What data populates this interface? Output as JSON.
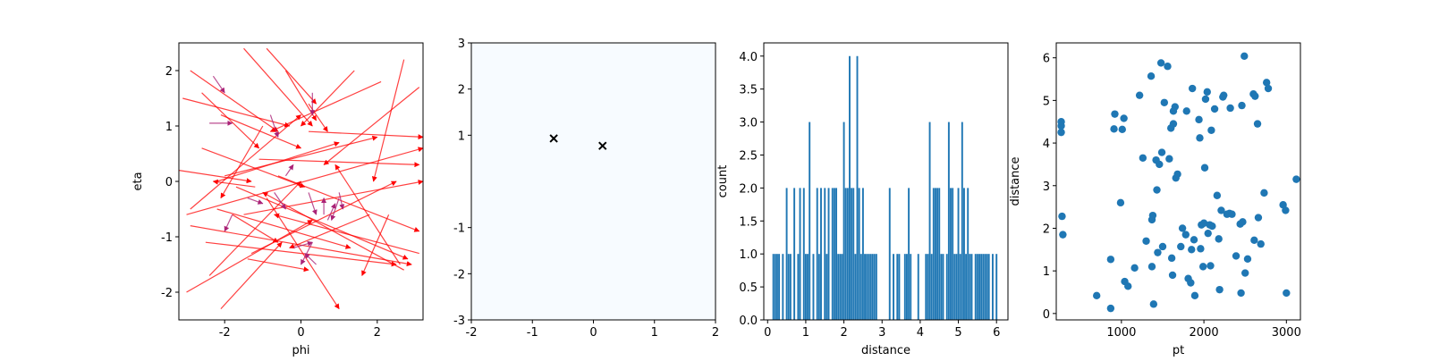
{
  "colors": {
    "arrow": "#ff0000",
    "arrow_short": "#aa2277",
    "bar": "#1f77b4",
    "point": "#1f77b4",
    "heat": "#f7fbff",
    "cross": "#000000"
  },
  "chart_data": [
    {
      "type": "quiver",
      "xlabel": "phi",
      "ylabel": "eta",
      "xlim": [
        -3.2,
        3.2
      ],
      "ylim": [
        -2.5,
        2.5
      ],
      "xticks": [
        -2,
        0,
        2
      ],
      "yticks": [
        -2,
        -1,
        0,
        1,
        2
      ],
      "long_arrows": [
        [
          -2.9,
          2.0,
          -0.6,
          0.9
        ],
        [
          -3.1,
          1.5,
          -0.3,
          1.0
        ],
        [
          -2.1,
          1.2,
          0.0,
          0.6
        ],
        [
          -1.5,
          2.4,
          0.3,
          1.0
        ],
        [
          -0.9,
          2.4,
          0.4,
          1.4
        ],
        [
          -0.4,
          2.0,
          0.4,
          1.1
        ],
        [
          0.2,
          1.4,
          0.7,
          0.9
        ],
        [
          1.4,
          2.0,
          0.0,
          1.0
        ],
        [
          2.1,
          1.8,
          -0.8,
          0.9
        ],
        [
          3.1,
          1.7,
          0.6,
          0.3
        ],
        [
          0.2,
          0.9,
          3.2,
          0.8
        ],
        [
          -2.2,
          0.0,
          1.0,
          0.7
        ],
        [
          -3.2,
          0.2,
          -1.3,
          0.0
        ],
        [
          -3.0,
          -0.6,
          3.2,
          0.6
        ],
        [
          2.7,
          2.2,
          1.9,
          0.0
        ],
        [
          -1.0,
          1.0,
          -2.1,
          -0.3
        ],
        [
          -2.6,
          1.6,
          -1.1,
          0.6
        ],
        [
          -1.5,
          -0.6,
          3.2,
          0.0
        ],
        [
          -2.9,
          -0.5,
          0.0,
          1.2
        ],
        [
          -3.0,
          -2.0,
          0.3,
          -0.7
        ],
        [
          -2.1,
          -2.3,
          -0.5,
          -1.1
        ],
        [
          -2.9,
          -0.8,
          2.9,
          -1.5
        ],
        [
          -2.2,
          -0.5,
          1.3,
          -1.2
        ],
        [
          2.7,
          -1.6,
          -1.0,
          -0.2
        ],
        [
          3.1,
          -1.3,
          -0.7,
          -0.6
        ],
        [
          -1.7,
          -0.1,
          2.8,
          -1.4
        ],
        [
          -1.8,
          -0.6,
          -0.6,
          -1.1
        ],
        [
          -0.9,
          -0.3,
          1.0,
          -2.3
        ],
        [
          -2.5,
          -1.1,
          2.5,
          -1.5
        ],
        [
          -1.4,
          -1.4,
          0.2,
          -1.6
        ],
        [
          2.3,
          -0.6,
          1.6,
          -1.7
        ],
        [
          1.8,
          -0.6,
          -0.3,
          -1.2
        ],
        [
          -2.6,
          0.6,
          0.1,
          -0.1
        ],
        [
          -1.1,
          0.4,
          3.1,
          0.3
        ],
        [
          -1.2,
          -0.1,
          -2.3,
          0.0
        ],
        [
          -2.0,
          0.1,
          2.0,
          0.8
        ],
        [
          -0.6,
          0.1,
          3.1,
          -0.9
        ],
        [
          -2.4,
          -1.7,
          0.0,
          0.0
        ],
        [
          2.6,
          -1.5,
          0.9,
          0.3
        ],
        [
          -1.3,
          -1.3,
          2.5,
          0.0
        ]
      ],
      "short_arrows": [
        [
          -2.3,
          1.9,
          -2.0,
          1.6
        ],
        [
          -2.4,
          1.05,
          -1.8,
          1.05
        ],
        [
          -0.8,
          1.2,
          -0.6,
          0.8
        ],
        [
          -1.4,
          -0.3,
          -1.0,
          -0.4
        ],
        [
          0.3,
          1.6,
          0.3,
          1.2
        ],
        [
          -0.4,
          0.1,
          -0.2,
          0.3
        ],
        [
          0.2,
          -0.2,
          0.4,
          -0.6
        ],
        [
          -1.8,
          -0.6,
          -2.0,
          -0.9
        ],
        [
          0.3,
          -1.1,
          0.0,
          -1.5
        ],
        [
          0.7,
          -0.7,
          0.9,
          -0.4
        ],
        [
          -0.7,
          -0.2,
          -0.4,
          -0.5
        ],
        [
          0.4,
          -1.5,
          0.1,
          -1.3
        ],
        [
          1.0,
          -0.3,
          0.8,
          -0.7
        ],
        [
          -0.2,
          -1.2,
          0.3,
          -1.1
        ],
        [
          0.6,
          -0.6,
          0.6,
          -0.3
        ],
        [
          1.0,
          -0.2,
          1.1,
          -0.5
        ]
      ]
    },
    {
      "type": "heatmap",
      "xlim": [
        -2,
        2
      ],
      "ylim": [
        -3,
        3
      ],
      "xticks": [
        -2,
        -1,
        0,
        1,
        2
      ],
      "yticks": [
        -3,
        -2,
        -1,
        1,
        2,
        3
      ],
      "xticklabels": [
        "-2",
        "-1",
        "0",
        "1",
        "2"
      ],
      "yticklabels": [
        "-3",
        "-2",
        "-1",
        "1",
        "2",
        "3"
      ],
      "markers": [
        [
          -0.65,
          0.93
        ],
        [
          0.15,
          0.77
        ]
      ]
    },
    {
      "type": "bar",
      "xlabel": "distance",
      "ylabel": "count",
      "xlim": [
        -0.1,
        6.3
      ],
      "ylim": [
        0,
        4.2
      ],
      "xticks": [
        0,
        1,
        2,
        3,
        4,
        5,
        6
      ],
      "yticks": [
        0.0,
        0.5,
        1.0,
        1.5,
        2.0,
        2.5,
        3.0,
        3.5,
        4.0
      ],
      "yticklabels": [
        "0.0",
        "0.5",
        "1.0",
        "1.5",
        "2.0",
        "2.5",
        "3.0",
        "3.5",
        "4.0"
      ],
      "bars": [
        [
          0.15,
          1
        ],
        [
          0.2,
          1
        ],
        [
          0.25,
          1
        ],
        [
          0.3,
          1
        ],
        [
          0.4,
          1
        ],
        [
          0.5,
          2
        ],
        [
          0.55,
          1
        ],
        [
          0.6,
          1
        ],
        [
          0.7,
          2
        ],
        [
          0.8,
          1
        ],
        [
          0.85,
          2
        ],
        [
          0.95,
          2
        ],
        [
          1.0,
          1
        ],
        [
          1.05,
          1
        ],
        [
          1.1,
          3
        ],
        [
          1.2,
          1
        ],
        [
          1.3,
          2
        ],
        [
          1.35,
          1
        ],
        [
          1.4,
          2
        ],
        [
          1.5,
          2
        ],
        [
          1.55,
          1
        ],
        [
          1.6,
          2
        ],
        [
          1.7,
          2
        ],
        [
          1.75,
          2
        ],
        [
          1.8,
          2
        ],
        [
          1.85,
          1
        ],
        [
          1.9,
          1
        ],
        [
          1.95,
          1
        ],
        [
          2.0,
          3
        ],
        [
          2.05,
          2
        ],
        [
          2.1,
          2
        ],
        [
          2.15,
          4
        ],
        [
          2.2,
          2
        ],
        [
          2.25,
          2
        ],
        [
          2.3,
          1
        ],
        [
          2.35,
          4
        ],
        [
          2.4,
          2
        ],
        [
          2.45,
          1
        ],
        [
          2.5,
          2
        ],
        [
          2.55,
          1
        ],
        [
          2.6,
          1
        ],
        [
          2.65,
          1
        ],
        [
          2.7,
          1
        ],
        [
          2.75,
          1
        ],
        [
          2.8,
          1
        ],
        [
          2.85,
          1
        ],
        [
          3.2,
          2
        ],
        [
          3.3,
          1
        ],
        [
          3.4,
          1
        ],
        [
          3.45,
          1
        ],
        [
          3.6,
          1
        ],
        [
          3.65,
          1
        ],
        [
          3.7,
          2
        ],
        [
          3.75,
          1
        ],
        [
          3.95,
          1
        ],
        [
          4.15,
          1
        ],
        [
          4.2,
          1
        ],
        [
          4.25,
          3
        ],
        [
          4.3,
          1
        ],
        [
          4.35,
          2
        ],
        [
          4.4,
          2
        ],
        [
          4.45,
          2
        ],
        [
          4.5,
          2
        ],
        [
          4.55,
          1
        ],
        [
          4.6,
          1
        ],
        [
          4.7,
          1
        ],
        [
          4.75,
          3
        ],
        [
          4.8,
          2
        ],
        [
          4.85,
          2
        ],
        [
          4.9,
          1
        ],
        [
          4.95,
          1
        ],
        [
          5.0,
          2
        ],
        [
          5.05,
          1
        ],
        [
          5.1,
          3
        ],
        [
          5.15,
          2
        ],
        [
          5.2,
          1
        ],
        [
          5.25,
          2
        ],
        [
          5.3,
          1
        ],
        [
          5.35,
          1
        ],
        [
          5.45,
          1
        ],
        [
          5.5,
          1
        ],
        [
          5.55,
          1
        ],
        [
          5.6,
          1
        ],
        [
          5.65,
          1
        ],
        [
          5.7,
          1
        ],
        [
          5.75,
          1
        ],
        [
          5.8,
          1
        ],
        [
          5.9,
          1
        ],
        [
          6.0,
          1
        ]
      ]
    },
    {
      "type": "scatter",
      "xlabel": "pt",
      "ylabel": "distance",
      "xlim": [
        210,
        3170
      ],
      "ylim": [
        -0.15,
        6.35
      ],
      "xticks": [
        1000,
        2000,
        3000
      ],
      "yticks": [
        0,
        1,
        2,
        3,
        4,
        5,
        6
      ],
      "points": [
        [
          270,
          4.5
        ],
        [
          270,
          4.4
        ],
        [
          270,
          4.25
        ],
        [
          280,
          2.28
        ],
        [
          290,
          1.85
        ],
        [
          700,
          0.42
        ],
        [
          870,
          1.27
        ],
        [
          870,
          0.12
        ],
        [
          910,
          4.33
        ],
        [
          920,
          4.68
        ],
        [
          990,
          2.6
        ],
        [
          1010,
          4.32
        ],
        [
          1030,
          4.58
        ],
        [
          1040,
          0.75
        ],
        [
          1080,
          0.64
        ],
        [
          1160,
          1.07
        ],
        [
          1220,
          5.12
        ],
        [
          1260,
          3.65
        ],
        [
          1300,
          1.7
        ],
        [
          1360,
          5.57
        ],
        [
          1370,
          2.2
        ],
        [
          1370,
          1.1
        ],
        [
          1380,
          2.3
        ],
        [
          1390,
          0.22
        ],
        [
          1420,
          3.6
        ],
        [
          1430,
          2.9
        ],
        [
          1440,
          1.43
        ],
        [
          1460,
          3.5
        ],
        [
          1480,
          5.88
        ],
        [
          1490,
          3.78
        ],
        [
          1500,
          1.57
        ],
        [
          1520,
          4.95
        ],
        [
          1560,
          5.8
        ],
        [
          1580,
          3.63
        ],
        [
          1600,
          4.35
        ],
        [
          1610,
          1.3
        ],
        [
          1620,
          0.9
        ],
        [
          1630,
          4.45
        ],
        [
          1630,
          4.75
        ],
        [
          1650,
          4.85
        ],
        [
          1660,
          3.18
        ],
        [
          1680,
          3.27
        ],
        [
          1720,
          1.57
        ],
        [
          1740,
          2.0
        ],
        [
          1780,
          1.85
        ],
        [
          1790,
          4.75
        ],
        [
          1810,
          0.82
        ],
        [
          1840,
          0.72
        ],
        [
          1850,
          1.5
        ],
        [
          1860,
          5.28
        ],
        [
          1880,
          1.73
        ],
        [
          1890,
          0.42
        ],
        [
          1940,
          4.55
        ],
        [
          1950,
          4.12
        ],
        [
          1960,
          1.52
        ],
        [
          1970,
          2.08
        ],
        [
          1990,
          1.1
        ],
        [
          2000,
          2.12
        ],
        [
          2010,
          3.42
        ],
        [
          2020,
          5.03
        ],
        [
          2040,
          5.2
        ],
        [
          2050,
          1.88
        ],
        [
          2070,
          2.08
        ],
        [
          2080,
          1.12
        ],
        [
          2090,
          4.3
        ],
        [
          2100,
          2.05
        ],
        [
          2130,
          4.8
        ],
        [
          2160,
          2.77
        ],
        [
          2180,
          1.75
        ],
        [
          2190,
          0.56
        ],
        [
          2210,
          2.42
        ],
        [
          2230,
          5.08
        ],
        [
          2240,
          5.12
        ],
        [
          2280,
          2.33
        ],
        [
          2310,
          2.35
        ],
        [
          2320,
          4.82
        ],
        [
          2340,
          2.33
        ],
        [
          2390,
          1.35
        ],
        [
          2440,
          2.1
        ],
        [
          2450,
          0.48
        ],
        [
          2460,
          4.88
        ],
        [
          2470,
          2.15
        ],
        [
          2490,
          6.04
        ],
        [
          2500,
          0.95
        ],
        [
          2530,
          1.28
        ],
        [
          2600,
          5.15
        ],
        [
          2610,
          1.72
        ],
        [
          2620,
          5.1
        ],
        [
          2650,
          4.45
        ],
        [
          2660,
          2.25
        ],
        [
          2690,
          1.63
        ],
        [
          2730,
          2.83
        ],
        [
          2760,
          5.42
        ],
        [
          2780,
          5.28
        ],
        [
          2960,
          2.55
        ],
        [
          2990,
          2.42
        ],
        [
          3000,
          0.48
        ],
        [
          3120,
          3.15
        ]
      ]
    }
  ]
}
